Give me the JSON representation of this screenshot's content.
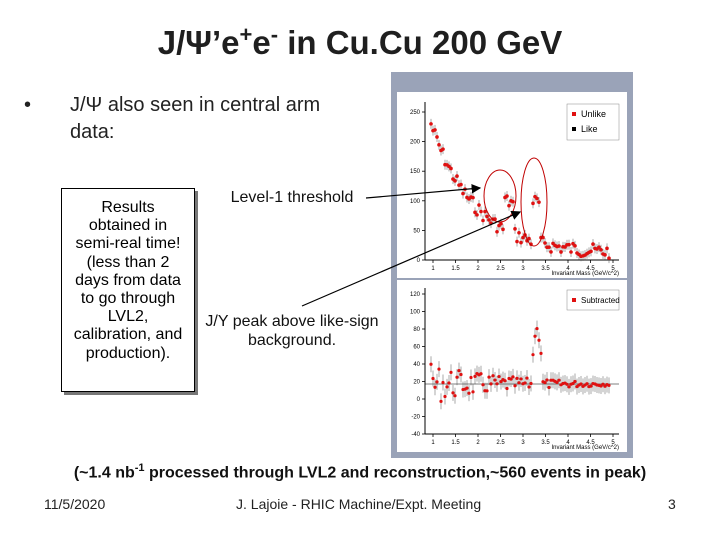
{
  "slide": {
    "title_a": "J/",
    "title_psi": "Ψ",
    "title_b": "’e",
    "title_plus": "+",
    "title_c": "e",
    "title_minus": "-",
    "title_d": " in Cu.Cu 200 GeV",
    "bullet_line1": "J/Ψ also seen in central arm",
    "bullet_line2": "data:",
    "results_lines": [
      "Results",
      "obtained in",
      "semi-real time!",
      "(less than 2",
      "days from data",
      "to go through",
      "LVL2,",
      "calibration, and",
      "production)."
    ],
    "annotation_level1": "Level-1 threshold",
    "annotation_peak": "J/Y peak above like-sign background.",
    "footer_note_a": "(~1.4 nb",
    "footer_note_sup": "-1",
    "footer_note_b": " processed through LVL2 and reconstruction,~560 events in peak)",
    "date": "11/5/2020",
    "center_footer": "J. Lajoie - RHIC Machine/Expt. Meeting",
    "page_number": "3"
  },
  "plot1": {
    "legend": [
      "Unlike",
      "Like"
    ],
    "yticks": [
      "250",
      "200",
      "150",
      "100",
      "50",
      "0"
    ],
    "xticks": [
      "1",
      "1.5",
      "2",
      "2.5",
      "3",
      "3.5",
      "4",
      "4.5",
      "5"
    ],
    "xlabel": "Invariant Mass (GeV/c^2)"
  },
  "plot2": {
    "legend": [
      "Subtracted"
    ],
    "yticks": [
      "120",
      "100",
      "80",
      "60",
      "40",
      "20",
      "0",
      "-20",
      "-40"
    ],
    "xticks": [
      "1",
      "1.5",
      "2",
      "2.5",
      "3",
      "3.5",
      "4",
      "4.5",
      "5"
    ],
    "xlabel": "Invariant Mass (GeV/c^2)"
  },
  "colors": {
    "marker": "#e01010",
    "border": "#9aa3b8",
    "circle": "#c00000"
  }
}
